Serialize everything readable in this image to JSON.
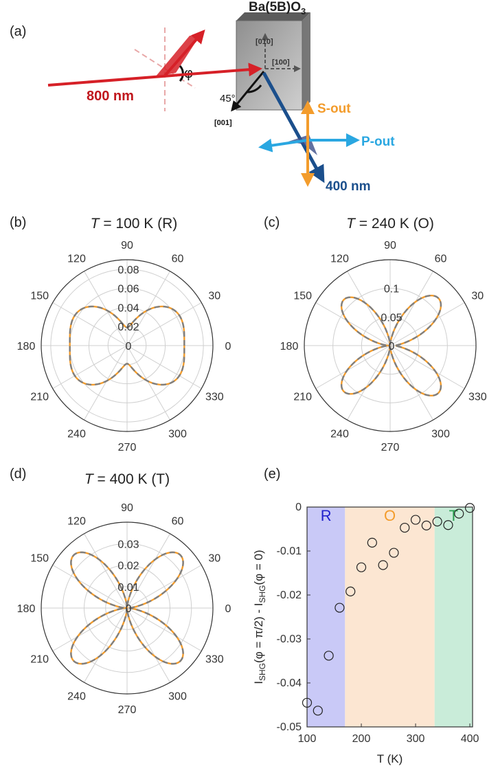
{
  "schematic": {
    "panel_label": "(a)",
    "crystal_label": "Ba(5B)O",
    "crystal_label_sub": "3",
    "axis_010": "[010]",
    "axis_100": "[100]",
    "axis_001": "[001]",
    "angle_label": "45°",
    "phi_label": "φ",
    "input_beam": "800 nm",
    "output_beam": "400 nm",
    "s_out": "S-out",
    "p_out": "P-out",
    "colors": {
      "input": "#d62027",
      "output": "#1b4f8c",
      "s_out": "#f39c2c",
      "p_out": "#2aa7e1"
    }
  },
  "chart_data": [
    {
      "id": "b",
      "type": "polar",
      "panel_label": "(b)",
      "title_italic": "T",
      "title_rest": " = 100 K (R)",
      "angle_ticks": [
        0,
        30,
        60,
        90,
        120,
        150,
        180,
        210,
        240,
        270,
        300,
        330
      ],
      "rlim": [
        0,
        0.09
      ],
      "r_ticks": [
        0,
        0.02,
        0.04,
        0.06,
        0.08
      ],
      "r_tick_labels": [
        "0",
        "0.02",
        "0.04",
        "0.06",
        "0.08"
      ],
      "model": {
        "A": 0.0395,
        "B": 0.0,
        "C": 0.0205,
        "D": 0.018
      },
      "series": [
        {
          "style": "solid",
          "color": "#f39c2c"
        },
        {
          "style": "dashed",
          "color": "#7f7f7f"
        }
      ]
    },
    {
      "id": "c",
      "type": "polar",
      "panel_label": "(c)",
      "title_italic": "T",
      "title_rest": " = 240 K (O)",
      "angle_ticks": [
        0,
        30,
        60,
        90,
        120,
        150,
        180,
        210,
        240,
        270,
        300,
        330
      ],
      "rlim": [
        0,
        0.15
      ],
      "r_ticks": [
        0,
        0.05,
        0.1
      ],
      "r_tick_labels": [
        "0",
        "0.05",
        "0.1"
      ],
      "model": {
        "A": 0.004,
        "B": 0.003,
        "C": 0.003,
        "D": 0.112
      },
      "series": [
        {
          "style": "solid",
          "color": "#f39c2c"
        },
        {
          "style": "dashed",
          "color": "#7f7f7f"
        }
      ]
    },
    {
      "id": "d",
      "type": "polar",
      "panel_label": "(d)",
      "title_italic": "T",
      "title_rest": " = 400 K (T)",
      "angle_ticks": [
        0,
        30,
        60,
        90,
        120,
        150,
        180,
        210,
        240,
        270,
        300,
        330
      ],
      "rlim": [
        0,
        0.04
      ],
      "r_ticks": [
        0,
        0.01,
        0.02,
        0.03
      ],
      "r_tick_labels": [
        "0",
        "0.01",
        "0.02",
        "0.03"
      ],
      "model": {
        "A": 0.0005,
        "B": 0.0,
        "C": 0.0005,
        "D": 0.0345
      },
      "series": [
        {
          "style": "solid",
          "color": "#f39c2c"
        },
        {
          "style": "dashed",
          "color": "#7f7f7f"
        }
      ]
    },
    {
      "id": "e",
      "type": "scatter",
      "panel_label": "(e)",
      "xlabel": "T (K)",
      "ylabel_main": "I",
      "ylabel_sub1": "SHG",
      "ylabel_mid": "(φ = π/2) - I",
      "ylabel_sub2": "SHG",
      "ylabel_end": "(φ = 0)",
      "xlim": [
        100,
        405
      ],
      "ylim": [
        -0.05,
        0
      ],
      "xticks": [
        100,
        200,
        300,
        400
      ],
      "xtick_labels": [
        "100",
        "200",
        "300",
        "400"
      ],
      "yticks": [
        0,
        -0.01,
        -0.02,
        -0.03,
        -0.04,
        -0.05
      ],
      "ytick_labels": [
        "0",
        "-0.01",
        "-0.02",
        "-0.03",
        "-0.04",
        "-0.05"
      ],
      "regions": [
        {
          "label": "R",
          "x0": 100,
          "x1": 170,
          "fill": "#c9c9f7",
          "text_color": "#2222cc"
        },
        {
          "label": "O",
          "x0": 170,
          "x1": 335,
          "fill": "#fce6d2",
          "text_color": "#f39c2c"
        },
        {
          "label": "T",
          "x0": 335,
          "x1": 405,
          "fill": "#c9ecd9",
          "text_color": "#2aa050"
        }
      ],
      "x": [
        100,
        120,
        140,
        160,
        180,
        200,
        220,
        240,
        260,
        280,
        300,
        320,
        340,
        360,
        380,
        400
      ],
      "y": [
        -0.0445,
        -0.0463,
        -0.0338,
        -0.0229,
        -0.0192,
        -0.0137,
        -0.0081,
        -0.0132,
        -0.0104,
        -0.0047,
        -0.0029,
        -0.0042,
        -0.0033,
        -0.0041,
        -0.0015,
        -0.0002
      ]
    }
  ]
}
